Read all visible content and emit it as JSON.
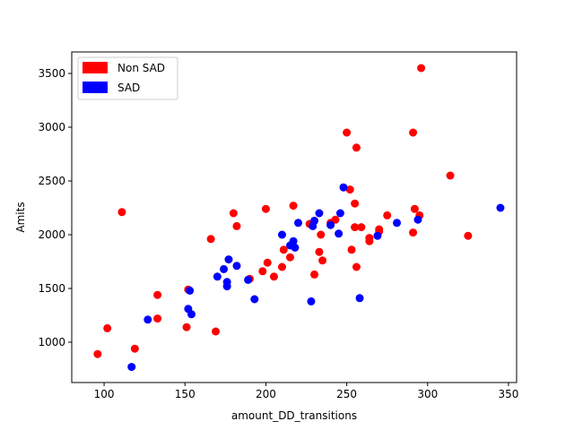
{
  "chart_data": {
    "type": "scatter",
    "xlabel": "amount_DD_transitions",
    "ylabel": "Amits",
    "xlim": [
      80,
      355
    ],
    "ylim": [
      625,
      3700
    ],
    "xticks": [
      100,
      150,
      200,
      250,
      300,
      350
    ],
    "yticks": [
      1000,
      1500,
      2000,
      2500,
      3000,
      3500
    ],
    "grid": false,
    "legend_position": "top-left",
    "series": [
      {
        "name": "Non SAD",
        "color": "#ff0000",
        "points": [
          [
            96,
            890
          ],
          [
            102,
            1130
          ],
          [
            111,
            2210
          ],
          [
            119,
            940
          ],
          [
            133,
            1440
          ],
          [
            133,
            1220
          ],
          [
            151,
            1140
          ],
          [
            152,
            1490
          ],
          [
            166,
            1960
          ],
          [
            169,
            1100
          ],
          [
            180,
            2200
          ],
          [
            182,
            2080
          ],
          [
            190,
            1590
          ],
          [
            198,
            1660
          ],
          [
            200,
            2240
          ],
          [
            201,
            1740
          ],
          [
            205,
            1610
          ],
          [
            210,
            1700
          ],
          [
            211,
            1860
          ],
          [
            215,
            1790
          ],
          [
            217,
            2270
          ],
          [
            227,
            2100
          ],
          [
            230,
            1630
          ],
          [
            233,
            1840
          ],
          [
            234,
            2000
          ],
          [
            235,
            1760
          ],
          [
            240,
            2110
          ],
          [
            243,
            2140
          ],
          [
            250,
            2950
          ],
          [
            252,
            2420
          ],
          [
            253,
            1860
          ],
          [
            255,
            2070
          ],
          [
            255,
            2290
          ],
          [
            256,
            1700
          ],
          [
            256,
            2810
          ],
          [
            259,
            2070
          ],
          [
            264,
            1940
          ],
          [
            264,
            1970
          ],
          [
            270,
            2050
          ],
          [
            270,
            2030
          ],
          [
            275,
            2180
          ],
          [
            291,
            2950
          ],
          [
            291,
            2020
          ],
          [
            292,
            2240
          ],
          [
            295,
            2180
          ],
          [
            296,
            3550
          ],
          [
            314,
            2550
          ],
          [
            325,
            1990
          ]
        ]
      },
      {
        "name": "SAD",
        "color": "#0000ff",
        "points": [
          [
            117,
            770
          ],
          [
            127,
            1210
          ],
          [
            152,
            1310
          ],
          [
            153,
            1480
          ],
          [
            154,
            1260
          ],
          [
            170,
            1610
          ],
          [
            174,
            1680
          ],
          [
            176,
            1520
          ],
          [
            176,
            1560
          ],
          [
            177,
            1770
          ],
          [
            182,
            1710
          ],
          [
            189,
            1580
          ],
          [
            193,
            1400
          ],
          [
            210,
            2000
          ],
          [
            215,
            1900
          ],
          [
            217,
            1940
          ],
          [
            218,
            1880
          ],
          [
            220,
            2110
          ],
          [
            228,
            1380
          ],
          [
            229,
            2080
          ],
          [
            230,
            2130
          ],
          [
            233,
            2200
          ],
          [
            240,
            2090
          ],
          [
            245,
            2010
          ],
          [
            246,
            2200
          ],
          [
            248,
            2440
          ],
          [
            258,
            1410
          ],
          [
            269,
            1990
          ],
          [
            281,
            2110
          ],
          [
            294,
            2140
          ],
          [
            345,
            2250
          ]
        ]
      }
    ]
  }
}
